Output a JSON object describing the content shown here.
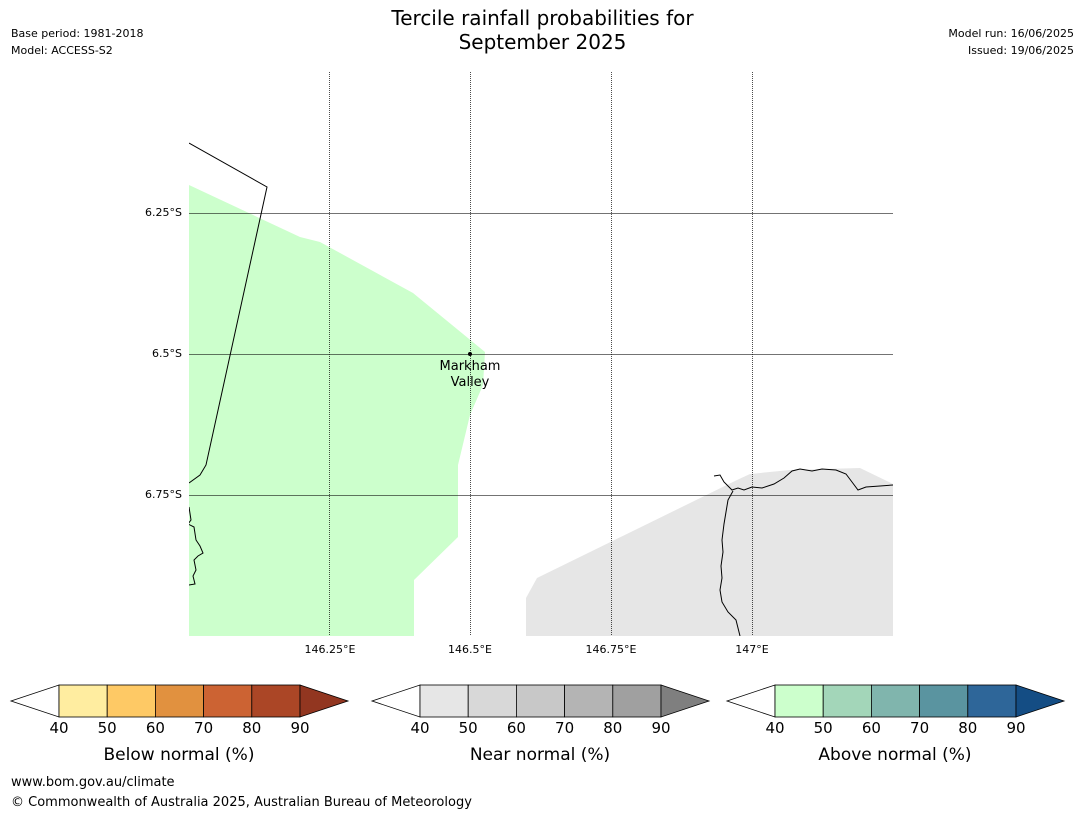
{
  "header": {
    "title_line1": "Tercile rainfall probabilities for",
    "title_line2": "September 2025",
    "base_period": "Base period: 1981-2018",
    "model": "Model: ACCESS-S2",
    "model_run": "Model run: 16/06/2025",
    "issued": "Issued: 19/06/2025"
  },
  "map": {
    "latitude_labels": [
      "6.25°S",
      "6.5°S",
      "6.75°S"
    ],
    "longitude_labels": [
      "146.25°E",
      "146.5°E",
      "146.75°E",
      "147°E"
    ],
    "place": {
      "name_line1": "Markham",
      "name_line2": "Valley"
    },
    "regions": [
      {
        "category": "Above normal",
        "band": "40-50",
        "color": "#ccffcc"
      },
      {
        "category": "Near normal",
        "band": "40-50",
        "color": "#e6e6e6"
      }
    ]
  },
  "colorbars": [
    {
      "label": "Below normal (%)",
      "ticks": [
        "40",
        "50",
        "60",
        "70",
        "80",
        "90"
      ],
      "colors": [
        "#ffffff",
        "#ffeda0",
        "#fec965",
        "#e1913f",
        "#cc6333",
        "#ab4626",
        "#923620"
      ]
    },
    {
      "label": "Near normal (%)",
      "ticks": [
        "40",
        "50",
        "60",
        "70",
        "80",
        "90"
      ],
      "colors": [
        "#ffffff",
        "#e6e6e6",
        "#d8d8d8",
        "#c8c8c8",
        "#b4b4b4",
        "#a0a0a0",
        "#7f7f7f"
      ]
    },
    {
      "label": "Above normal (%)",
      "ticks": [
        "40",
        "50",
        "60",
        "70",
        "80",
        "90"
      ],
      "colors": [
        "#ffffff",
        "#ccffcc",
        "#a3d6b9",
        "#80b5ad",
        "#5a94a0",
        "#2e6699",
        "#144d84"
      ]
    }
  ],
  "footer": {
    "url": "www.bom.gov.au/climate",
    "copyright": "© Commonwealth of Australia 2025, Australian Bureau of Meteorology"
  }
}
